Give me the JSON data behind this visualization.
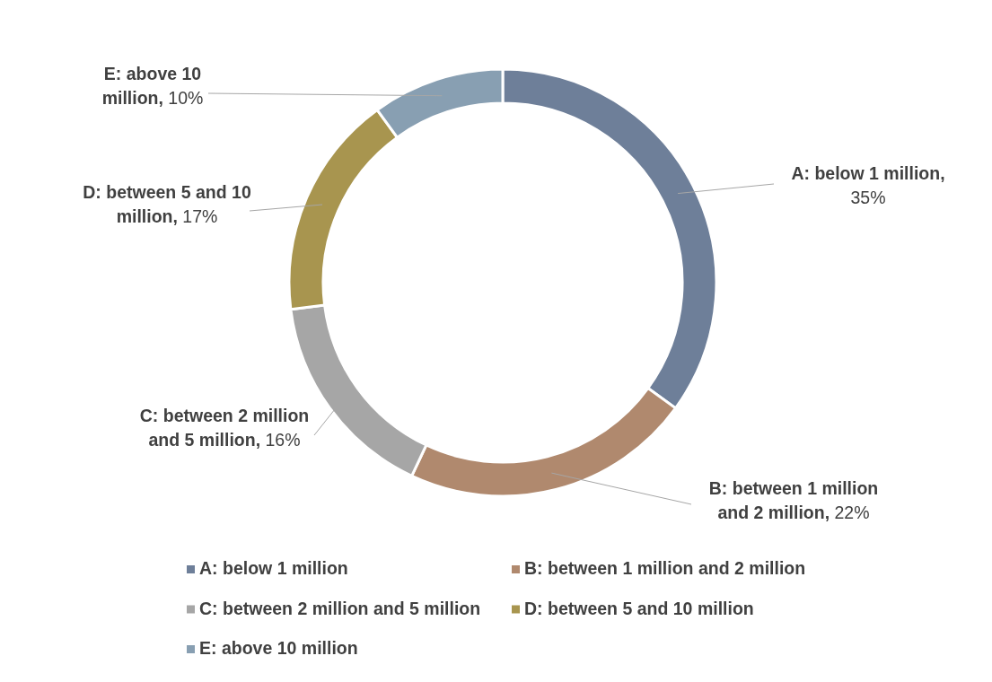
{
  "chart_data": {
    "type": "donut",
    "categories": [
      "A: below 1 million",
      "B: between 1 million and 2 million",
      "C: between 2 million and 5 million",
      "D: between 5 and 10 million",
      "E: above 10 million"
    ],
    "values": [
      35,
      22,
      16,
      17,
      10
    ],
    "colors": [
      "#6e7f99",
      "#b0896e",
      "#a6a6a6",
      "#a8954f",
      "#889fb2"
    ],
    "value_labels": [
      "A: below 1 million, 35%",
      "B: between 1 million and 2 million, 22%",
      "C: between 2 million and 5 million, 16%",
      "D: between 5 and 10 million, 17%",
      "E: above 10 million, 10%"
    ],
    "legend": "bottom"
  }
}
